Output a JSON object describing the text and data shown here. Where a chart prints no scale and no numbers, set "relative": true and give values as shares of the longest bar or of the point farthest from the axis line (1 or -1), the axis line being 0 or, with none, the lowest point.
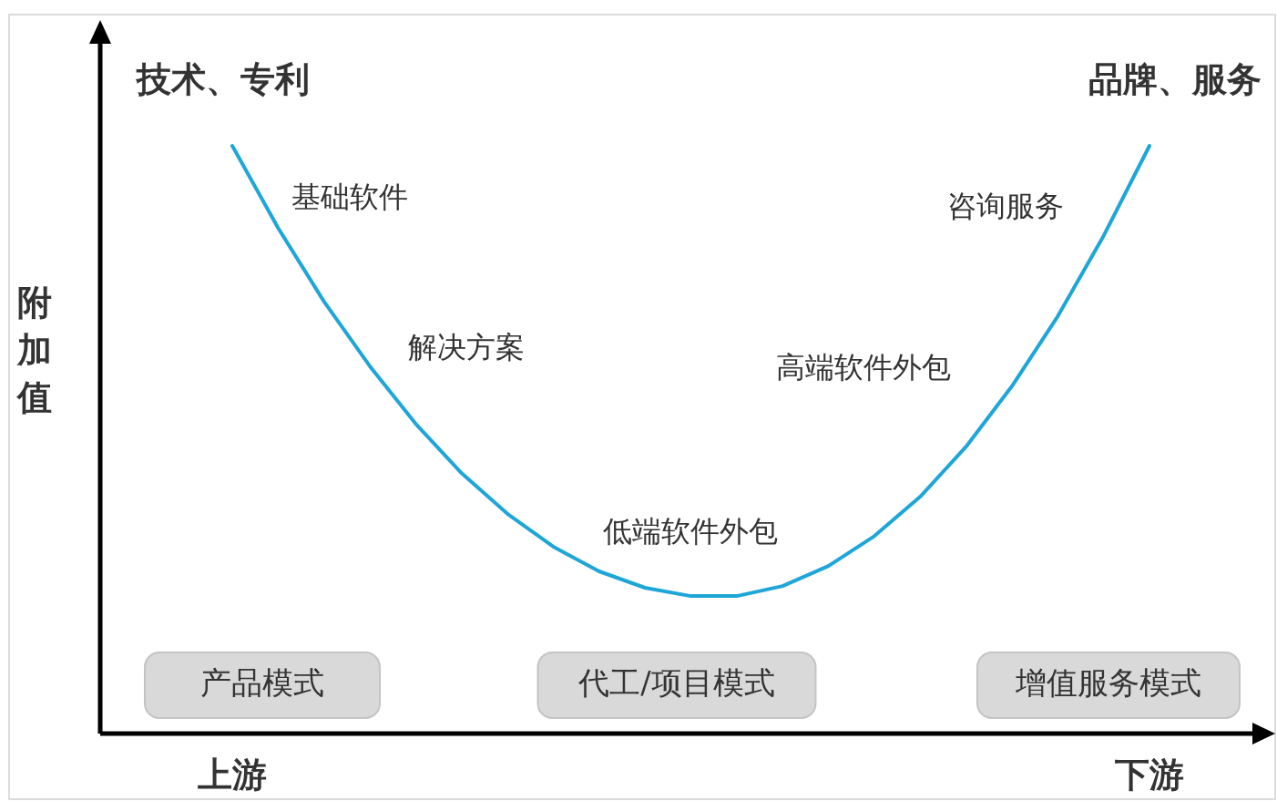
{
  "chart_data": {
    "type": "line",
    "relative": true,
    "ylabel": "附加值",
    "categories": [
      "上游",
      null,
      null,
      null,
      null,
      null,
      null,
      null,
      null,
      null,
      null,
      null,
      null,
      null,
      null,
      null,
      null,
      null,
      null,
      null,
      "下游"
    ],
    "series": [
      {
        "color": "#1ea6d8",
        "values": [
          1,
          0.86,
          0.735,
          0.625,
          0.527,
          0.443,
          0.374,
          0.318,
          0.276,
          0.248,
          0.234,
          0.234,
          0.251,
          0.285,
          0.336,
          0.403,
          0.488,
          0.591,
          0.71,
          0.847,
          1
        ]
      }
    ],
    "annotations": [
      "技术、专利",
      "品牌、服务",
      "基础软件",
      "解决方案",
      "低端软件外包",
      "高端软件外包",
      "咨询服务",
      "产品模式",
      "代工/项目模式",
      "增值服务模式"
    ]
  }
}
